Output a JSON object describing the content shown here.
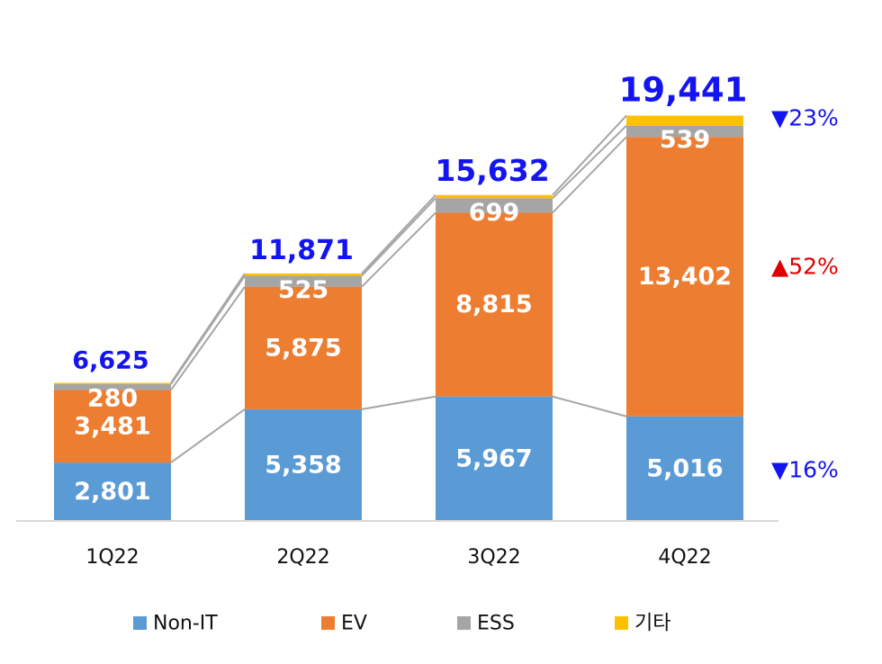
{
  "chart_data": {
    "type": "stacked-bar",
    "categories": [
      "1Q22",
      "2Q22",
      "3Q22",
      "4Q22"
    ],
    "series": [
      {
        "name": "Non-IT",
        "color": "#5b9bd5",
        "values": [
          2801,
          5358,
          5967,
          5016
        ],
        "labels": [
          "2,801",
          "5,358",
          "5,967",
          "5,016"
        ]
      },
      {
        "name": "EV",
        "color": "#ed7d31",
        "values": [
          3481,
          5875,
          8815,
          13402
        ],
        "labels": [
          "3,481",
          "5,875",
          "8,815",
          "13,402"
        ]
      },
      {
        "name": "ESS",
        "color": "#a5a5a5",
        "values": [
          280,
          525,
          699,
          539
        ],
        "labels": [
          "280",
          "525",
          "699",
          "539"
        ]
      },
      {
        "name": "기타",
        "color": "#ffc000",
        "values": [
          63,
          113,
          151,
          484
        ],
        "labels": []
      }
    ],
    "totals": [
      "6,625",
      "11,871",
      "15,632",
      "19,441"
    ],
    "total_values": [
      6625,
      11871,
      15632,
      19441
    ],
    "ylim": [
      0,
      20800
    ],
    "annotations": [
      {
        "text": "▼23%",
        "series": "ESS",
        "color": "#1414f0"
      },
      {
        "text": "▲52%",
        "series": "EV",
        "color": "#e00000"
      },
      {
        "text": "▼16%",
        "series": "Non-IT",
        "color": "#1414f0"
      }
    ],
    "legend_position": "bottom",
    "grid": false
  }
}
